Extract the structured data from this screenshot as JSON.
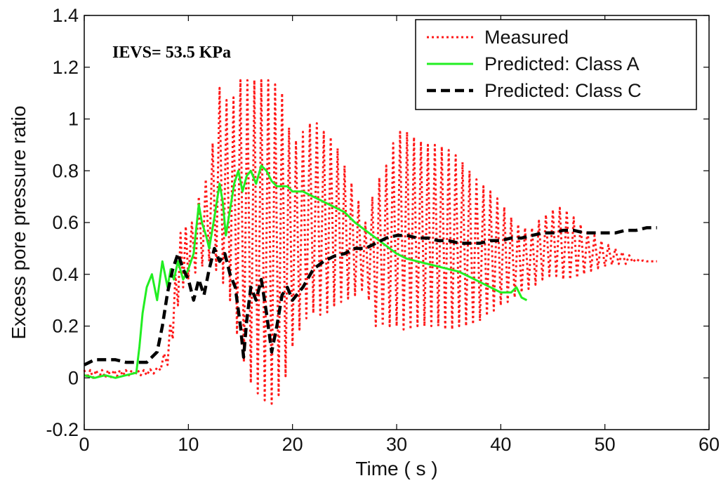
{
  "chart_data": {
    "type": "line",
    "xlabel": "Time ( s )",
    "ylabel": "Excess pore pressure ratio",
    "xlim": [
      0,
      60
    ],
    "ylim": [
      -0.2,
      1.4
    ],
    "x_ticks": [
      "0",
      "10",
      "20",
      "30",
      "40",
      "50",
      "60"
    ],
    "y_ticks": [
      "-0.2",
      "0",
      "0.2",
      "0.4",
      "0.6",
      "0.8",
      "1",
      "1.2",
      "1.4"
    ],
    "grid": false,
    "legend_position": "top-right",
    "annotation": "IEVS= 53.5 KPa",
    "series": [
      {
        "name": "Measured",
        "color": "#ff1a1a",
        "style": "dotted",
        "envelope": {
          "x": [
            0,
            2,
            4,
            6,
            7,
            8,
            8.5,
            9,
            9.5,
            10,
            11,
            12,
            13,
            14,
            15,
            16,
            17,
            18,
            19,
            20,
            21,
            22,
            23,
            24,
            25,
            26,
            27,
            28,
            29,
            30,
            31,
            32,
            33,
            34,
            35,
            36,
            37,
            38,
            39,
            40,
            41,
            42,
            43,
            44,
            45,
            46,
            47,
            48,
            49,
            50,
            51,
            52,
            53,
            54,
            55
          ],
          "upper": [
            0.03,
            0.03,
            0.03,
            0.03,
            0.04,
            0.12,
            0.3,
            0.5,
            0.62,
            0.55,
            0.7,
            0.8,
            1.12,
            1.05,
            1.15,
            1.15,
            1.15,
            1.15,
            1.1,
            0.9,
            0.95,
            1.0,
            0.95,
            0.92,
            0.82,
            0.72,
            0.6,
            0.75,
            0.82,
            0.95,
            0.95,
            0.92,
            0.9,
            0.9,
            0.88,
            0.85,
            0.8,
            0.75,
            0.72,
            0.68,
            0.62,
            0.58,
            0.58,
            0.62,
            0.65,
            0.66,
            0.62,
            0.58,
            0.55,
            0.52,
            0.5,
            0.48,
            0.46,
            0.45,
            0.45
          ],
          "lower": [
            0.0,
            0.0,
            0.01,
            0.01,
            0.02,
            0.05,
            0.15,
            0.28,
            0.35,
            0.38,
            0.42,
            0.45,
            0.4,
            0.3,
            0.1,
            -0.02,
            -0.08,
            -0.1,
            -0.05,
            0.12,
            0.22,
            0.25,
            0.24,
            0.28,
            0.3,
            0.32,
            0.35,
            0.2,
            0.2,
            0.2,
            0.18,
            0.2,
            0.2,
            0.2,
            0.18,
            0.2,
            0.2,
            0.22,
            0.25,
            0.28,
            0.3,
            0.33,
            0.35,
            0.38,
            0.4,
            0.38,
            0.38,
            0.4,
            0.42,
            0.43,
            0.44,
            0.44,
            0.45,
            0.45,
            0.45
          ]
        }
      },
      {
        "name": "Predicted: Class A",
        "color": "#22ee22",
        "style": "solid",
        "x": [
          0,
          1,
          2,
          3,
          4,
          5,
          5.3,
          5.6,
          6,
          6.5,
          7,
          7.5,
          8,
          8.3,
          8.6,
          9,
          9.5,
          10,
          10.5,
          11,
          11.3,
          11.7,
          12,
          12.5,
          13,
          13.3,
          13.6,
          14,
          14.4,
          14.8,
          15.2,
          15.6,
          16,
          16.5,
          17,
          17.5,
          18,
          18.5,
          19,
          19.5,
          20,
          21,
          22,
          23,
          24,
          25,
          26,
          27,
          28,
          29,
          30,
          31,
          32,
          33,
          34,
          35,
          36,
          37,
          38,
          39,
          40,
          41,
          41.5,
          42,
          42.5
        ],
        "y": [
          0.01,
          0.0,
          0.01,
          0.0,
          0.01,
          0.02,
          0.12,
          0.25,
          0.35,
          0.4,
          0.3,
          0.45,
          0.35,
          0.42,
          0.38,
          0.45,
          0.38,
          0.42,
          0.48,
          0.67,
          0.6,
          0.55,
          0.5,
          0.62,
          0.75,
          0.68,
          0.55,
          0.65,
          0.75,
          0.8,
          0.72,
          0.78,
          0.8,
          0.75,
          0.82,
          0.8,
          0.76,
          0.74,
          0.74,
          0.74,
          0.72,
          0.72,
          0.7,
          0.68,
          0.66,
          0.64,
          0.6,
          0.57,
          0.54,
          0.51,
          0.48,
          0.46,
          0.45,
          0.44,
          0.43,
          0.42,
          0.41,
          0.39,
          0.37,
          0.35,
          0.33,
          0.33,
          0.35,
          0.31,
          0.3
        ]
      },
      {
        "name": "Predicted: Class C",
        "color": "#000000",
        "style": "dashed",
        "x": [
          0,
          1,
          2,
          3,
          4,
          5,
          6,
          7,
          7.5,
          8,
          8.5,
          9,
          9.5,
          10,
          10.5,
          11,
          11.5,
          12,
          12.5,
          13,
          13.5,
          14,
          14.5,
          15,
          15.3,
          15.6,
          16,
          16.5,
          17,
          17.5,
          18,
          18.5,
          19,
          19.5,
          20,
          21,
          22,
          23,
          24,
          25,
          26,
          27,
          28,
          29,
          30,
          31,
          32,
          33,
          34,
          35,
          36,
          37,
          38,
          39,
          40,
          41,
          42,
          43,
          44,
          45,
          46,
          47,
          48,
          49,
          50,
          51,
          52,
          53,
          54,
          55
        ],
        "y": [
          0.05,
          0.07,
          0.07,
          0.07,
          0.06,
          0.06,
          0.06,
          0.1,
          0.2,
          0.33,
          0.42,
          0.48,
          0.42,
          0.38,
          0.3,
          0.38,
          0.32,
          0.42,
          0.5,
          0.45,
          0.48,
          0.4,
          0.35,
          0.2,
          0.08,
          0.22,
          0.35,
          0.3,
          0.38,
          0.25,
          0.1,
          0.2,
          0.32,
          0.35,
          0.3,
          0.35,
          0.42,
          0.45,
          0.47,
          0.48,
          0.5,
          0.5,
          0.52,
          0.54,
          0.55,
          0.55,
          0.54,
          0.54,
          0.53,
          0.53,
          0.52,
          0.52,
          0.52,
          0.53,
          0.53,
          0.54,
          0.54,
          0.55,
          0.56,
          0.56,
          0.57,
          0.57,
          0.56,
          0.56,
          0.56,
          0.56,
          0.57,
          0.57,
          0.58,
          0.58
        ]
      }
    ]
  }
}
